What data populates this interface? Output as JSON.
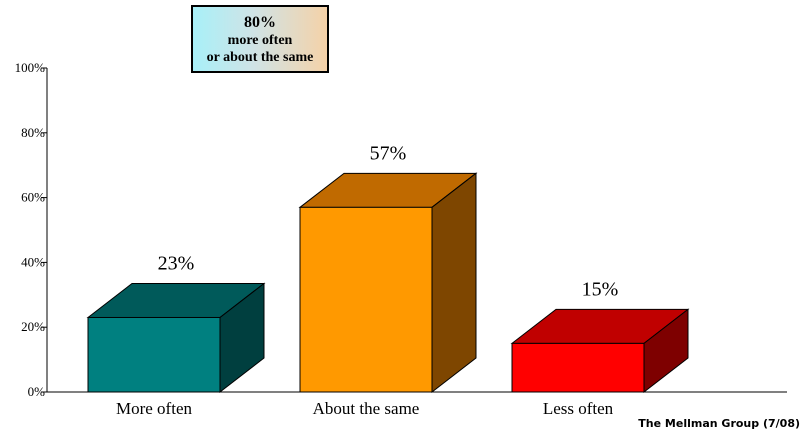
{
  "chart_data": {
    "type": "bar",
    "style": "3d",
    "categories": [
      "More often",
      "About the same",
      "Less often"
    ],
    "values": [
      23,
      57,
      15
    ],
    "data_labels": [
      "23%",
      "57%",
      "15%"
    ],
    "colors": [
      {
        "front": "#008080",
        "top": "#005a5a",
        "side": "#003f3f"
      },
      {
        "front": "#ff9900",
        "top": "#c06a00",
        "side": "#7e4600"
      },
      {
        "front": "#ff0000",
        "top": "#c00000",
        "side": "#7e0000"
      }
    ],
    "ylim": [
      0,
      100
    ],
    "y_ticks": [
      {
        "value": 0,
        "label": "0%"
      },
      {
        "value": 20,
        "label": "20%"
      },
      {
        "value": 40,
        "label": "40%"
      },
      {
        "value": 60,
        "label": "60%"
      },
      {
        "value": 80,
        "label": "80%"
      },
      {
        "value": 100,
        "label": "100%"
      }
    ],
    "grid": false,
    "title": "",
    "xlabel": "",
    "ylabel": ""
  },
  "callout": {
    "value": "80%",
    "line1": "more often",
    "line2": "or about the same"
  },
  "source": "The Mellman Group (7/08)"
}
